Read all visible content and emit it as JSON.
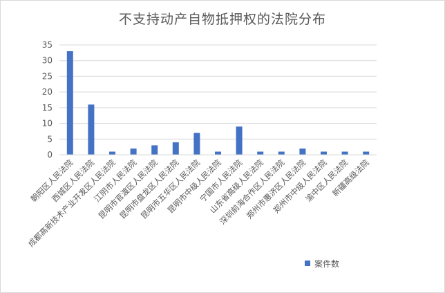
{
  "chart_data": {
    "type": "bar",
    "title": "不支持动产自物抵押权的法院分布",
    "categories": [
      "朝阳区人民法院",
      "西城区人民法院",
      "成都高新技术产业开发区人民法院",
      "江阴市人民法院",
      "昆明市官渡区人民法院",
      "昆明市盘龙区人民法院",
      "昆明市五华区人民法院",
      "昆明市中级人民法院",
      "宁国市人民法院",
      "山东省高级人民法院",
      "深圳前海合作区人民法院",
      "郑州市惠济区人民法院",
      "郑州市中级人民法院",
      "渝中区人民法院",
      "新疆高级法院"
    ],
    "series": [
      {
        "name": "案件数",
        "values": [
          33,
          16,
          1,
          2,
          3,
          4,
          7,
          1,
          9,
          1,
          1,
          2,
          1,
          1,
          1
        ]
      }
    ],
    "ylim": [
      0,
      35
    ],
    "yticks": [
      "0",
      "5",
      "10",
      "15",
      "20",
      "25",
      "30",
      "35"
    ],
    "grid": true,
    "legend_position": "bottom-right",
    "colors": {
      "bar": "#4472c4",
      "grid": "#d9d9d9",
      "text": "#595959"
    }
  }
}
